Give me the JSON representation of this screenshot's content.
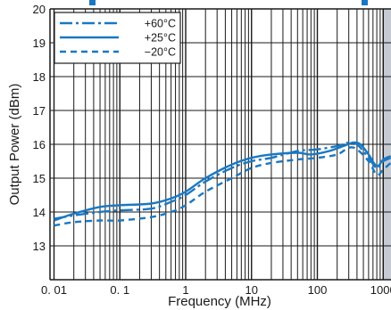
{
  "chart_data": {
    "type": "line",
    "xlabel": "Frequency (MHz)",
    "ylabel": "Output Power (dBm)",
    "x_scale": "log",
    "xlim": [
      0.01,
      1000
    ],
    "ylim": [
      12,
      20
    ],
    "x_ticks": [
      0.01,
      0.1,
      1,
      10,
      100,
      1000
    ],
    "x_tick_labels": [
      "0. 01",
      "0. 1",
      "1",
      "10",
      "100",
      "1000"
    ],
    "y_ticks": [
      13,
      14,
      15,
      16,
      17,
      18,
      19,
      20
    ],
    "y_tick_labels": [
      "13",
      "14",
      "15",
      "16",
      "17",
      "18",
      "19",
      "20"
    ],
    "grid": true,
    "legend_position": "top-left",
    "colors": {
      "series": "#1a78c2",
      "shaded_region": "#c5cad3",
      "grid": "#1a1a1a"
    },
    "series": [
      {
        "name": "+60°C",
        "dash": "long-dash-dot",
        "points": [
          [
            0.01,
            13.8
          ],
          [
            0.02,
            13.9
          ],
          [
            0.05,
            14.0
          ],
          [
            0.1,
            14.05
          ],
          [
            0.3,
            14.1
          ],
          [
            0.6,
            14.3
          ],
          [
            1,
            14.5
          ],
          [
            2,
            14.9
          ],
          [
            5,
            15.3
          ],
          [
            10,
            15.5
          ],
          [
            20,
            15.6
          ],
          [
            50,
            15.8
          ],
          [
            100,
            15.85
          ],
          [
            200,
            15.95
          ],
          [
            300,
            16.05
          ],
          [
            400,
            16.0
          ],
          [
            600,
            15.6
          ],
          [
            800,
            15.3
          ],
          [
            1000,
            15.5
          ],
          [
            1300,
            15.6
          ]
        ]
      },
      {
        "name": "+25°C",
        "dash": "solid",
        "points": [
          [
            0.01,
            13.75
          ],
          [
            0.02,
            13.95
          ],
          [
            0.05,
            14.15
          ],
          [
            0.1,
            14.2
          ],
          [
            0.3,
            14.25
          ],
          [
            0.6,
            14.4
          ],
          [
            1,
            14.6
          ],
          [
            2,
            15.0
          ],
          [
            5,
            15.4
          ],
          [
            10,
            15.6
          ],
          [
            20,
            15.7
          ],
          [
            50,
            15.75
          ],
          [
            80,
            15.7
          ],
          [
            150,
            15.8
          ],
          [
            250,
            15.95
          ],
          [
            350,
            16.05
          ],
          [
            450,
            16.0
          ],
          [
            600,
            15.7
          ],
          [
            800,
            15.35
          ],
          [
            1000,
            15.55
          ],
          [
            1300,
            15.65
          ]
        ]
      },
      {
        "name": "−20°C",
        "dash": "dashed",
        "points": [
          [
            0.01,
            13.6
          ],
          [
            0.02,
            13.7
          ],
          [
            0.05,
            13.75
          ],
          [
            0.1,
            13.75
          ],
          [
            0.3,
            13.85
          ],
          [
            0.6,
            14.0
          ],
          [
            1,
            14.2
          ],
          [
            2,
            14.6
          ],
          [
            5,
            15.0
          ],
          [
            10,
            15.3
          ],
          [
            20,
            15.45
          ],
          [
            50,
            15.55
          ],
          [
            100,
            15.6
          ],
          [
            200,
            15.7
          ],
          [
            300,
            15.9
          ],
          [
            400,
            15.85
          ],
          [
            600,
            15.5
          ],
          [
            800,
            15.1
          ],
          [
            1000,
            15.25
          ],
          [
            1300,
            15.45
          ]
        ]
      }
    ]
  }
}
